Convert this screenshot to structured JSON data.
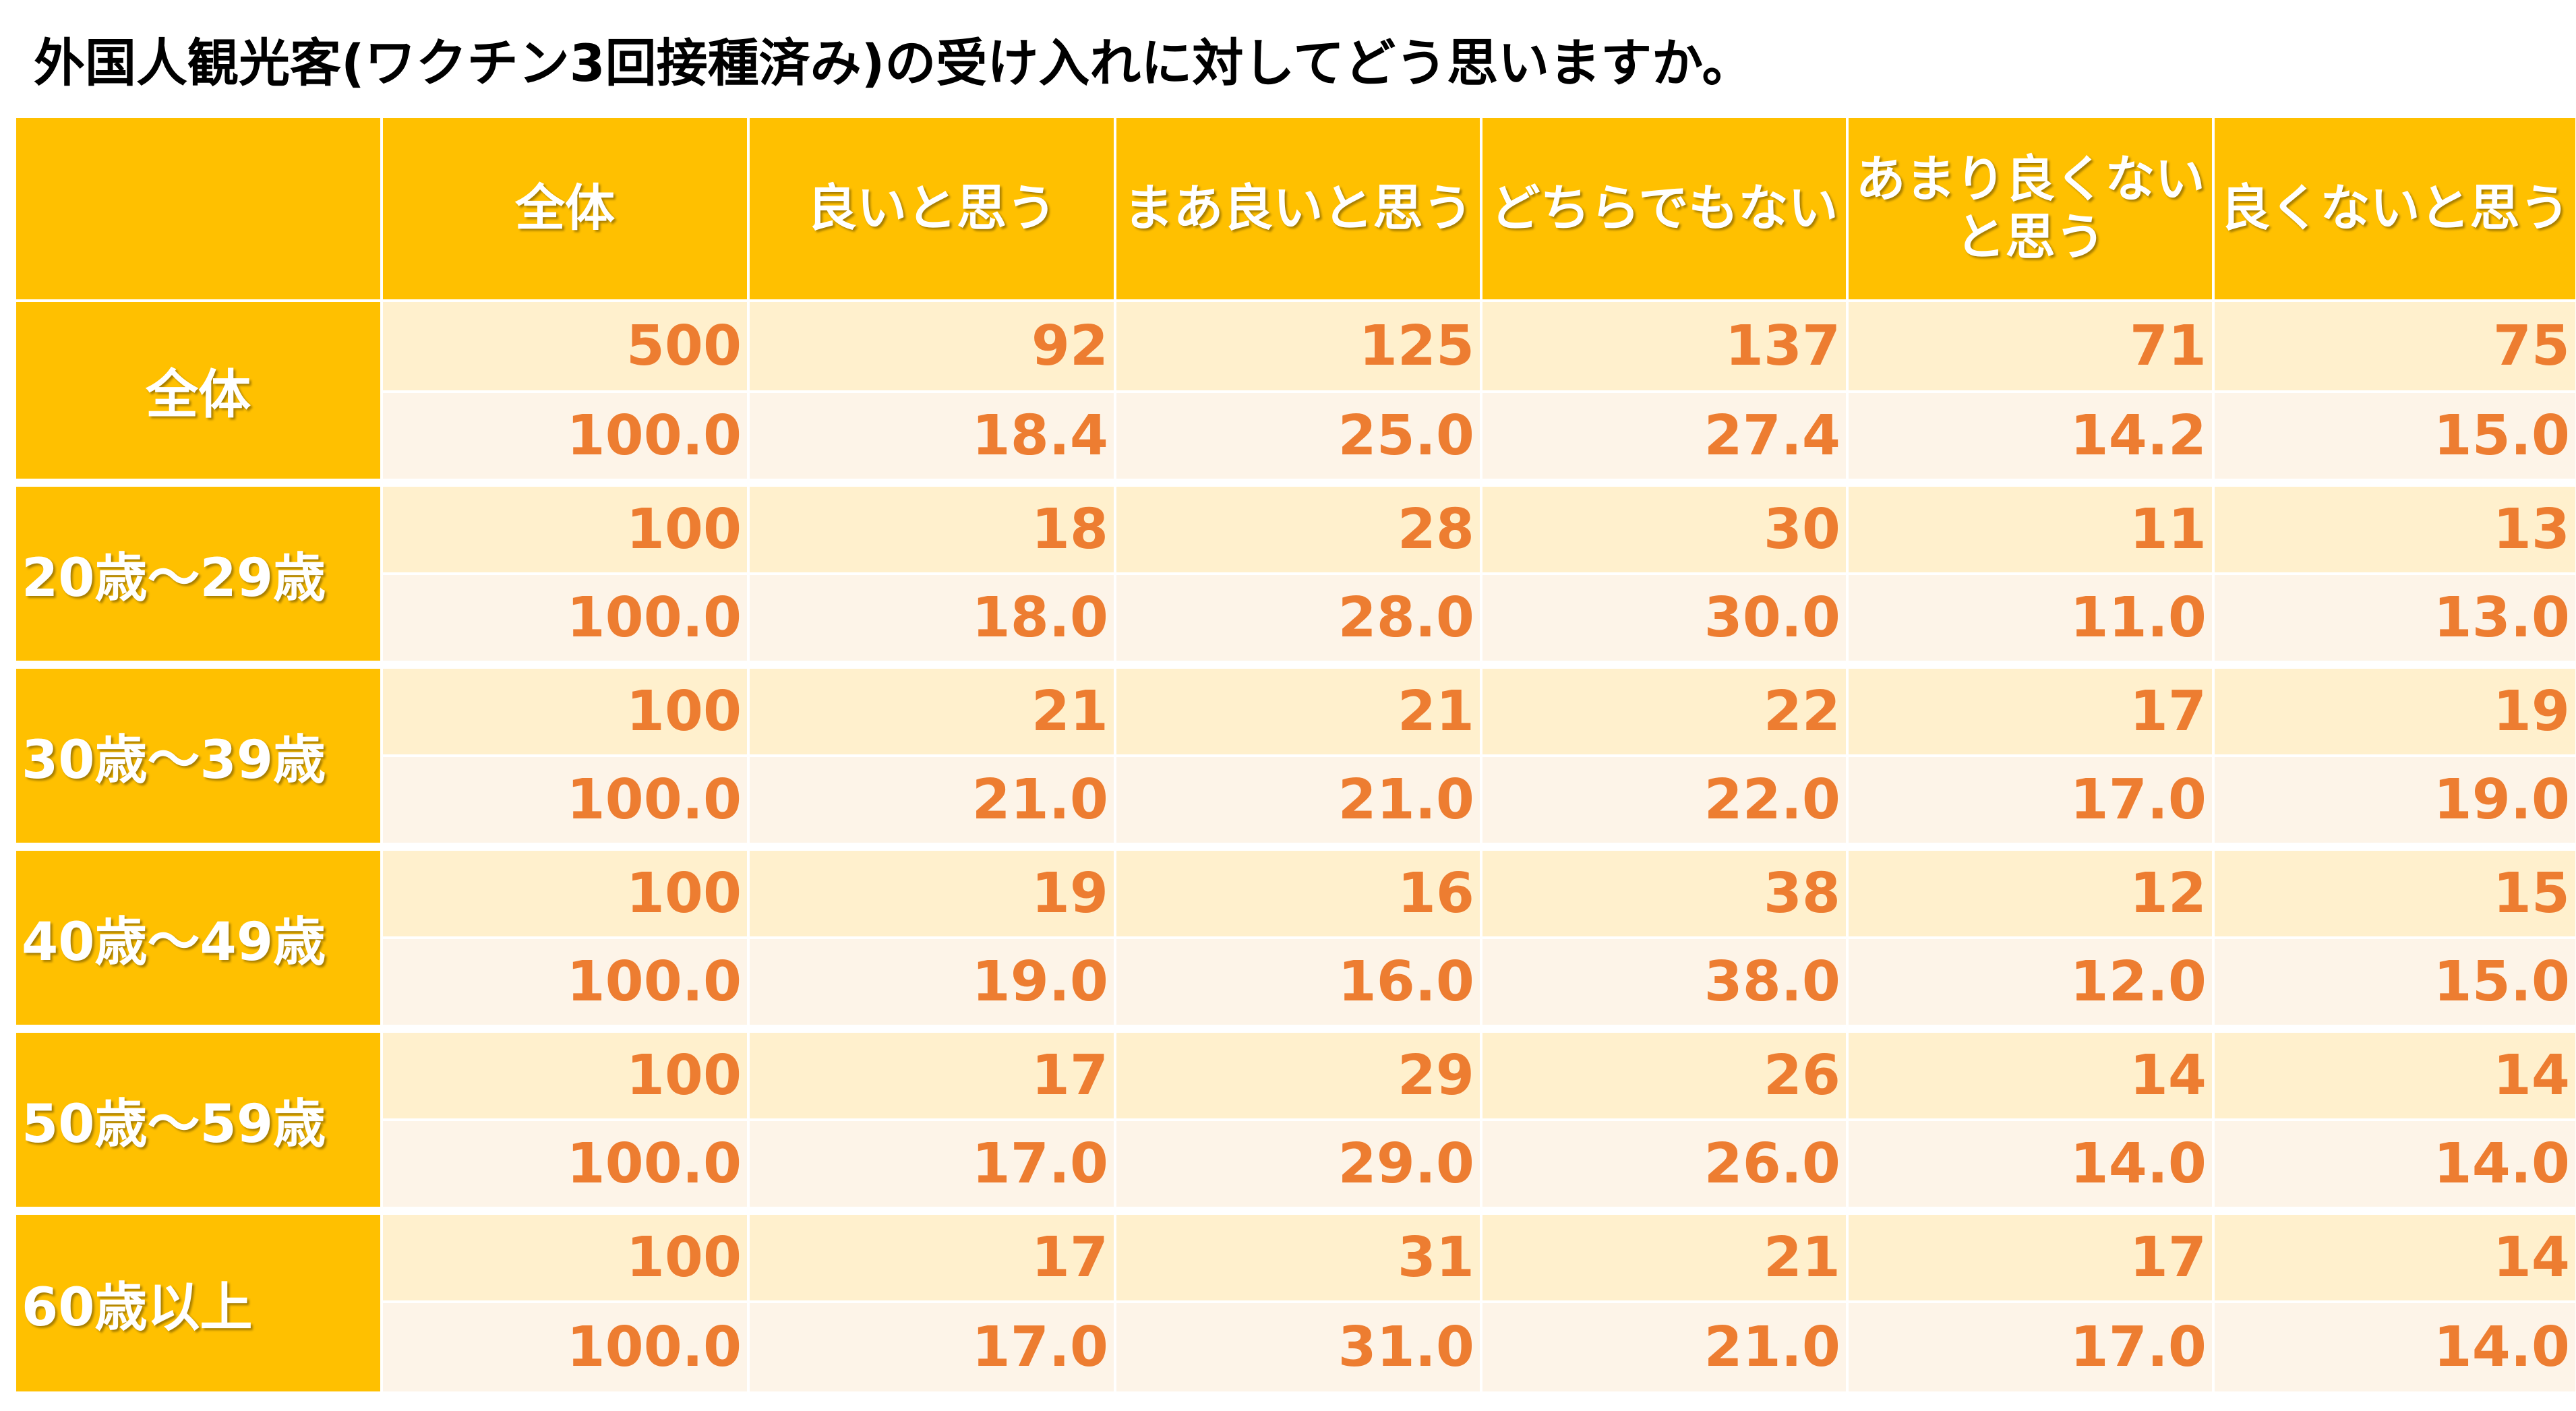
{
  "title": "外国人観光客(ワクチン3回接種済み)の受け入れに対してどう思いますか。",
  "chart_data": {
    "type": "table",
    "columns": [
      "全体",
      "良いと思う",
      "まあ良いと思う",
      "どちらでもない",
      "あまり良くない\nと思う",
      "良くないと思う"
    ],
    "groups": [
      {
        "label": "全体",
        "counts": [
          "500",
          "92",
          "125",
          "137",
          "71",
          "75"
        ],
        "percents": [
          "100.0",
          "18.4",
          "25.0",
          "27.4",
          "14.2",
          "15.0"
        ]
      },
      {
        "label": "20歳～29歳",
        "counts": [
          "100",
          "18",
          "28",
          "30",
          "11",
          "13"
        ],
        "percents": [
          "100.0",
          "18.0",
          "28.0",
          "30.0",
          "11.0",
          "13.0"
        ]
      },
      {
        "label": "30歳～39歳",
        "counts": [
          "100",
          "21",
          "21",
          "22",
          "17",
          "19"
        ],
        "percents": [
          "100.0",
          "21.0",
          "21.0",
          "22.0",
          "17.0",
          "19.0"
        ]
      },
      {
        "label": "40歳～49歳",
        "counts": [
          "100",
          "19",
          "16",
          "38",
          "12",
          "15"
        ],
        "percents": [
          "100.0",
          "19.0",
          "16.0",
          "38.0",
          "12.0",
          "15.0"
        ]
      },
      {
        "label": "50歳～59歳",
        "counts": [
          "100",
          "17",
          "29",
          "26",
          "14",
          "14"
        ],
        "percents": [
          "100.0",
          "17.0",
          "29.0",
          "26.0",
          "14.0",
          "14.0"
        ]
      },
      {
        "label": "60歳以上",
        "counts": [
          "100",
          "17",
          "31",
          "21",
          "17",
          "14"
        ],
        "percents": [
          "100.0",
          "17.0",
          "31.0",
          "21.0",
          "17.0",
          "14.0"
        ]
      }
    ]
  },
  "colors": {
    "header_bg": "#ffc000",
    "count_row_bg": "#fff0cd",
    "percent_row_bg": "#fdf4e8",
    "value_text": "#ed7d31"
  }
}
